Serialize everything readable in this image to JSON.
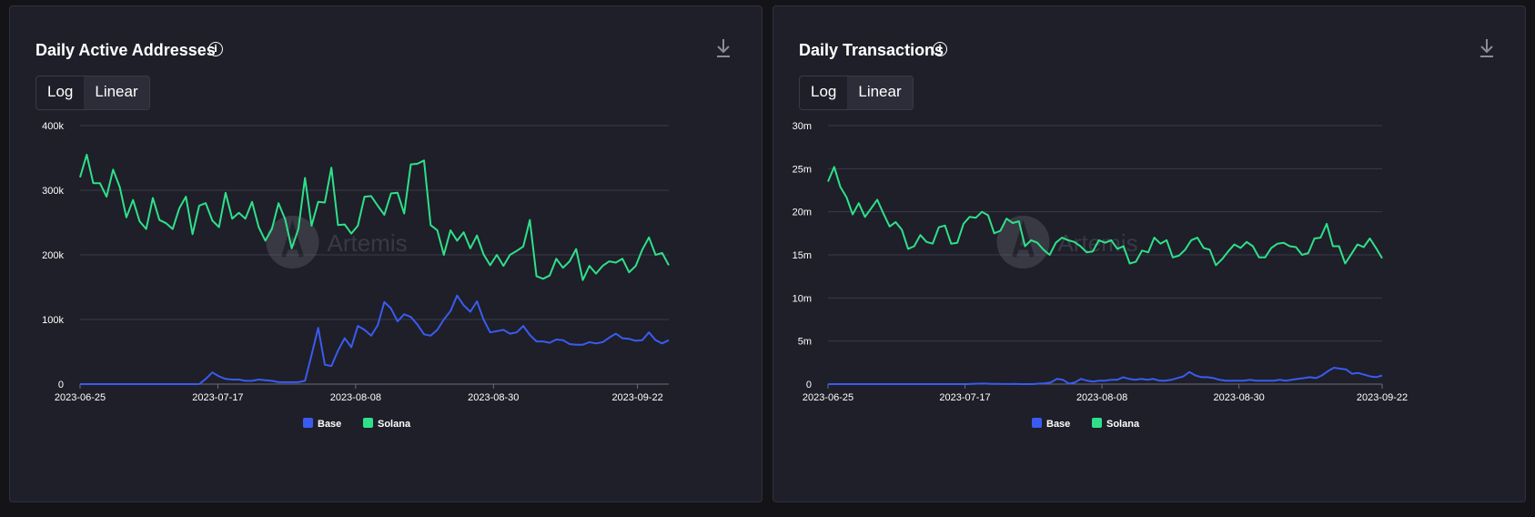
{
  "panels": [
    {
      "title": "Daily Active Addresses",
      "scale_options": [
        "Log",
        "Linear"
      ],
      "selected_scale": "Linear",
      "watermark": "Artemis"
    },
    {
      "title": "Daily Transactions",
      "scale_options": [
        "Log",
        "Linear"
      ],
      "selected_scale": "Linear",
      "watermark": "Artemis"
    }
  ],
  "chart_data": [
    {
      "type": "line",
      "title": "Daily Active Addresses",
      "x_start": "2023-06-25",
      "x_end": "2023-09-27",
      "x_ticks": [
        "2023-06-25",
        "2023-07-17",
        "2023-08-08",
        "2023-08-30",
        "2023-09-22"
      ],
      "ylim": [
        0,
        400000
      ],
      "y_ticks": [
        0,
        100000,
        200000,
        300000,
        400000
      ],
      "y_tick_labels": [
        "0",
        "100k",
        "200k",
        "300k",
        "400k"
      ],
      "grid": true,
      "legend_position": "bottom-center",
      "series": [
        {
          "name": "Base",
          "color": "#3a5bf0",
          "values": [
            0,
            0,
            0,
            0,
            0,
            0,
            0,
            0,
            0,
            0,
            0,
            0,
            0,
            0,
            0,
            0,
            0,
            0,
            0,
            8000,
            18000,
            12000,
            8000,
            7000,
            7000,
            5000,
            5000,
            7000,
            6000,
            5000,
            3000,
            3000,
            3000,
            3000,
            5000,
            45000,
            87000,
            30000,
            28000,
            52000,
            71000,
            57000,
            90000,
            84000,
            75000,
            91000,
            127000,
            117000,
            97000,
            108000,
            104000,
            92000,
            77000,
            75000,
            84000,
            100000,
            113000,
            137000,
            122000,
            112000,
            128000,
            100000,
            80000,
            82000,
            84000,
            78000,
            80000,
            90000,
            76000,
            66000,
            66000,
            64000,
            69000,
            68000,
            62000,
            61000,
            61000,
            65000,
            63000,
            65000,
            72000,
            78000,
            71000,
            70000,
            67000,
            68000,
            80000,
            68000,
            63000,
            68000
          ]
        },
        {
          "name": "Solana",
          "color": "#2fe08a",
          "values": [
            320000,
            355000,
            311000,
            311000,
            290000,
            332000,
            305000,
            258000,
            285000,
            252000,
            240000,
            288000,
            254000,
            249000,
            240000,
            272000,
            290000,
            232000,
            276000,
            280000,
            253000,
            243000,
            296000,
            256000,
            265000,
            256000,
            282000,
            243000,
            222000,
            240000,
            280000,
            255000,
            210000,
            240000,
            319000,
            245000,
            282000,
            281000,
            335000,
            246000,
            247000,
            233000,
            245000,
            290000,
            291000,
            276000,
            262000,
            295000,
            296000,
            264000,
            340000,
            341000,
            346000,
            246000,
            238000,
            200000,
            238000,
            222000,
            235000,
            210000,
            230000,
            201000,
            184000,
            200000,
            183000,
            200000,
            206000,
            213000,
            254000,
            167000,
            163000,
            168000,
            194000,
            180000,
            190000,
            209000,
            161000,
            183000,
            171000,
            183000,
            190000,
            188000,
            194000,
            173000,
            183000,
            208000,
            227000,
            200000,
            203000,
            184000
          ]
        }
      ]
    },
    {
      "type": "line",
      "title": "Daily Transactions",
      "x_start": "2023-06-25",
      "x_end": "2023-09-22",
      "x_ticks": [
        "2023-06-25",
        "2023-07-17",
        "2023-08-08",
        "2023-08-30",
        "2023-09-22"
      ],
      "ylim": [
        0,
        30000000
      ],
      "y_ticks": [
        0,
        5000000,
        10000000,
        15000000,
        20000000,
        25000000,
        30000000
      ],
      "y_tick_labels": [
        "0",
        "5m",
        "10m",
        "15m",
        "20m",
        "25m",
        "30m"
      ],
      "grid": true,
      "legend_position": "bottom-center",
      "series": [
        {
          "name": "Base",
          "color": "#3a5bf0",
          "values": [
            0,
            0,
            0,
            0,
            0,
            0,
            0,
            0,
            0,
            0,
            0,
            0,
            0,
            0,
            0,
            0,
            0,
            0,
            0,
            0,
            0,
            0,
            0,
            0,
            20000,
            50000,
            60000,
            30000,
            20000,
            10000,
            10000,
            20000,
            0,
            0,
            0,
            50000,
            100000,
            200000,
            600000,
            500000,
            50000,
            200000,
            600000,
            400000,
            300000,
            400000,
            400000,
            500000,
            500000,
            800000,
            600000,
            500000,
            600000,
            500000,
            600000,
            400000,
            400000,
            500000,
            700000,
            900000,
            1400000,
            1000000,
            800000,
            800000,
            700000,
            500000,
            400000,
            400000,
            400000,
            400000,
            500000,
            400000,
            400000,
            400000,
            400000,
            500000,
            400000,
            500000,
            600000,
            700000,
            800000,
            700000,
            1000000,
            1500000,
            1900000,
            1800000,
            1700000,
            1200000,
            1300000,
            1100000,
            900000,
            800000,
            1000000
          ]
        },
        {
          "name": "Solana",
          "color": "#2fe08a",
          "values": [
            23500000,
            25200000,
            22900000,
            21700000,
            19700000,
            21000000,
            19400000,
            20400000,
            21400000,
            19800000,
            18300000,
            18800000,
            17900000,
            15700000,
            16000000,
            17300000,
            16500000,
            16300000,
            18200000,
            18400000,
            16300000,
            16400000,
            18600000,
            19400000,
            19300000,
            20000000,
            19600000,
            17500000,
            17800000,
            19200000,
            18700000,
            18900000,
            16000000,
            16700000,
            16400000,
            15600000,
            15000000,
            16400000,
            17000000,
            16700000,
            16500000,
            16000000,
            15300000,
            15400000,
            16700000,
            16400000,
            16700000,
            15700000,
            16000000,
            14000000,
            14200000,
            15500000,
            15300000,
            17000000,
            16300000,
            16700000,
            14700000,
            14900000,
            15600000,
            16700000,
            17000000,
            15800000,
            15600000,
            13800000,
            14500000,
            15400000,
            16200000,
            15800000,
            16500000,
            16000000,
            14700000,
            14700000,
            15800000,
            16300000,
            16400000,
            16000000,
            15900000,
            15000000,
            15200000,
            16900000,
            17000000,
            18600000,
            16000000,
            16000000,
            14000000,
            15100000,
            16200000,
            15900000,
            16900000,
            15800000,
            14600000
          ]
        }
      ]
    }
  ]
}
